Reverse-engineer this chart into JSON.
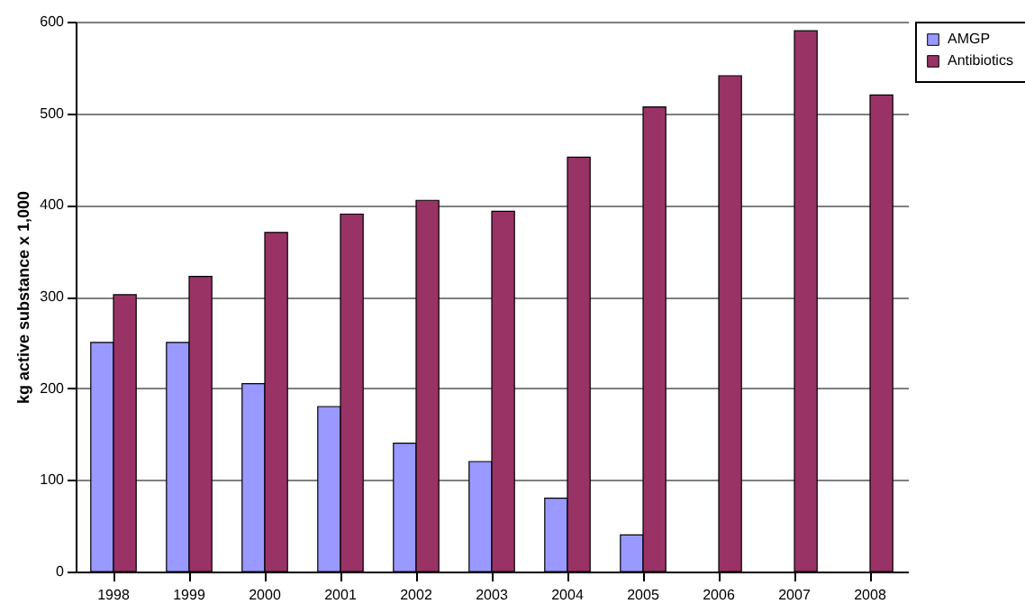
{
  "chart_data": {
    "type": "bar",
    "ylabel": "kg active substance x 1,000",
    "categories": [
      "1998",
      "1999",
      "2000",
      "2001",
      "2002",
      "2003",
      "2004",
      "2005",
      "2006",
      "2007",
      "2008"
    ],
    "series": [
      {
        "name": "AMGP",
        "color": "#9999ff",
        "values": [
          250,
          250,
          205,
          180,
          140,
          120,
          80,
          40,
          null,
          null,
          null
        ]
      },
      {
        "name": "Antibiotics",
        "color": "#993366",
        "values": [
          302,
          322,
          370,
          390,
          405,
          393,
          452,
          507,
          541,
          590,
          520
        ]
      }
    ],
    "ylim": [
      0,
      600
    ],
    "yticks": [
      0,
      100,
      200,
      300,
      400,
      500,
      600
    ],
    "grid": "y",
    "legend": "right"
  }
}
